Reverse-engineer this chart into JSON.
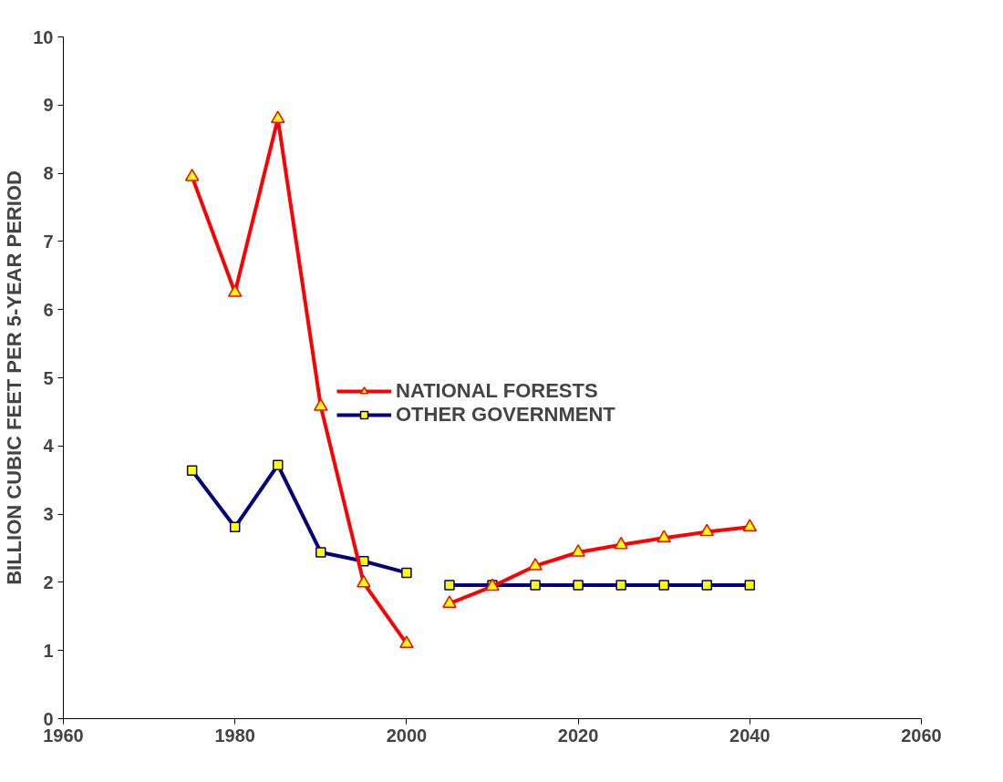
{
  "chart_data": {
    "type": "line",
    "ylabel": "BILLION CUBIC FEET PER 5-YEAR PERIOD",
    "x": [
      1975,
      1980,
      1985,
      1990,
      1995,
      2000,
      2002.5,
      2005,
      2010,
      2015,
      2020,
      2025,
      2030,
      2035,
      2040
    ],
    "series": [
      {
        "name": "NATIONAL FORESTS",
        "color": "#ff0000",
        "marker": "triangle",
        "values": [
          7.95,
          6.25,
          8.8,
          4.58,
          1.99,
          1.1,
          null,
          1.69,
          1.94,
          2.24,
          2.44,
          2.55,
          2.65,
          2.74,
          2.81
        ]
      },
      {
        "name": "OTHER GOVERNMENT",
        "color": "#000080",
        "marker": "square",
        "values": [
          3.64,
          2.81,
          3.72,
          2.44,
          2.31,
          2.14,
          null,
          1.96,
          1.96,
          1.96,
          1.96,
          1.96,
          1.96,
          1.96,
          1.96
        ]
      }
    ],
    "xlim": [
      1960,
      2060
    ],
    "xticks": [
      1960,
      1980,
      2000,
      2020,
      2040,
      2060
    ],
    "ylim": [
      0,
      10
    ],
    "yticks": [
      0,
      1,
      2,
      3,
      4,
      5,
      6,
      7,
      8,
      9,
      10
    ],
    "grid": false,
    "legend": "right",
    "line_style": "solid"
  }
}
